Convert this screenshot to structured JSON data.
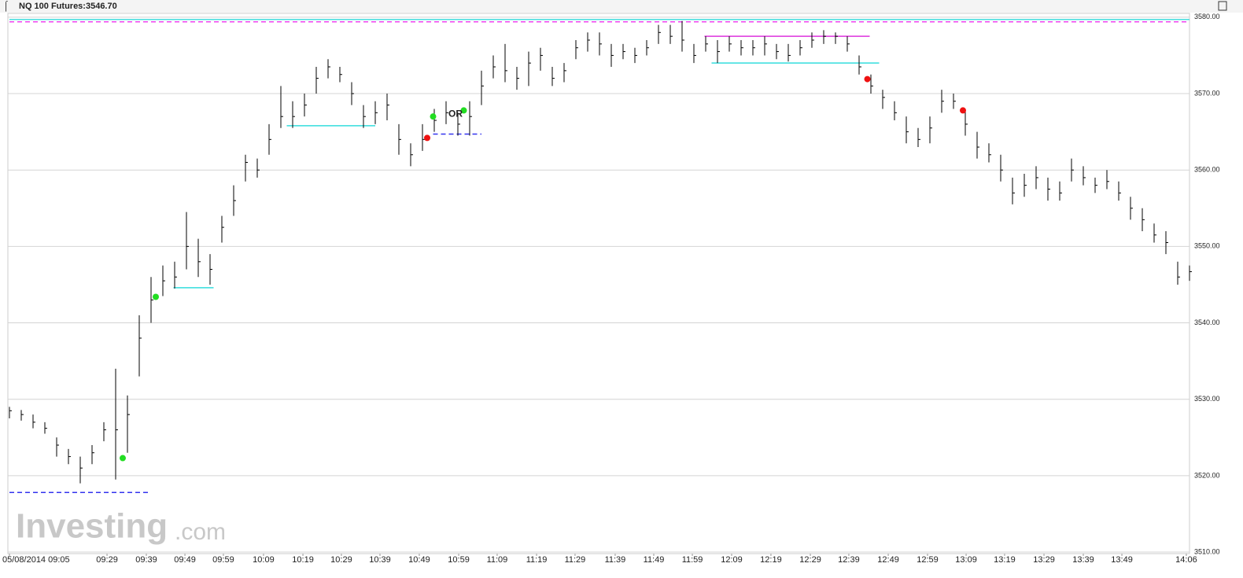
{
  "chart_data": {
    "type": "ohlc",
    "title": "NQ 100 Futures:3546.70",
    "watermark": [
      "Investing",
      ".com"
    ],
    "color": "#000000",
    "high": [
      3529,
      3528.6,
      3528,
      3527,
      3525,
      3523.5,
      3522.5,
      3524,
      3527,
      3534,
      3530.5,
      3541,
      3546,
      3547.5,
      3548,
      3554.5,
      3551,
      3549,
      3554,
      3558,
      3562,
      3561.5,
      3566,
      3571,
      3569,
      3570,
      3573.5,
      3574.5,
      3573.5,
      3571.5,
      3568.5,
      3569,
      3570,
      3566,
      3563.5,
      3566,
      3568,
      3569,
      3567.5,
      3569,
      3573,
      3575,
      3576.5,
      3573.5,
      3575.5,
      3576,
      3573.5,
      3574,
      3577,
      3578,
      3578,
      3576.5,
      3576.5,
      3576,
      3577,
      3579,
      3579,
      3579.5,
      3576.5,
      3577.5,
      3577,
      3577.5,
      3577,
      3577,
      3577.5,
      3576.5,
      3576.5,
      3577,
      3578,
      3578.3,
      3578,
      3577.5,
      3575,
      3572.5,
      3570.5,
      3569,
      3567,
      3565.5,
      3567,
      3570.5,
      3570,
      3568,
      3565,
      3563.5,
      3562,
      3559,
      3559.5,
      3560.5,
      3559,
      3558.5,
      3561.5,
      3560.5,
      3559,
      3560,
      3558.5,
      3556.5,
      3555,
      3553,
      3552,
      3548,
      3547.5
    ],
    "low": [
      3527.5,
      3527.2,
      3526.2,
      3525.5,
      3522.5,
      3521.5,
      3519,
      3521.5,
      3524.5,
      3519.5,
      3523,
      3533,
      3540,
      3543.5,
      3544.5,
      3547,
      3546,
      3545,
      3550.5,
      3554,
      3558.5,
      3559,
      3562,
      3565.5,
      3565.5,
      3567,
      3570,
      3572,
      3571.5,
      3568.5,
      3565.5,
      3566,
      3566.5,
      3562,
      3560.5,
      3562.5,
      3565,
      3566,
      3564.5,
      3564.5,
      3568.5,
      3572,
      3571.5,
      3570.5,
      3571,
      3573,
      3571,
      3571.5,
      3574.5,
      3575.5,
      3575,
      3573.5,
      3574.5,
      3574,
      3575,
      3576.5,
      3576.5,
      3575.5,
      3574,
      3575.5,
      3574,
      3575.5,
      3575,
      3575,
      3575,
      3574.5,
      3574.2,
      3575,
      3576,
      3576.5,
      3576.5,
      3575.5,
      3572.5,
      3570,
      3568,
      3566.5,
      3563.5,
      3563,
      3563.5,
      3567.5,
      3568,
      3564.5,
      3561.5,
      3561,
      3558.5,
      3555.5,
      3556.5,
      3557.5,
      3556,
      3556,
      3558.5,
      3558,
      3557,
      3557.5,
      3556,
      3553.5,
      3552,
      3550.5,
      3549,
      3545,
      3545.5
    ],
    "close": [
      3528.5,
      3528,
      3527,
      3526.2,
      3524,
      3522.5,
      3521,
      3523,
      3526,
      3526,
      3528,
      3538,
      3543,
      3545.5,
      3546,
      3550,
      3548,
      3547,
      3552.5,
      3556,
      3561,
      3560,
      3564,
      3567,
      3567,
      3568.5,
      3572,
      3573.5,
      3572.5,
      3570,
      3567,
      3567.5,
      3568.5,
      3564,
      3562,
      3564,
      3566.5,
      3567.5,
      3566,
      3567,
      3571,
      3573.5,
      3573,
      3572,
      3574,
      3575,
      3572,
      3573,
      3576,
      3577,
      3576.5,
      3575,
      3575.5,
      3575,
      3576,
      3578,
      3577.5,
      3577,
      3575,
      3576.5,
      3575.5,
      3576.5,
      3576,
      3576,
      3576.5,
      3575.5,
      3575,
      3576,
      3577,
      3577.5,
      3577.5,
      3576.5,
      3573.5,
      3571,
      3569.5,
      3567.5,
      3565,
      3564,
      3565.5,
      3569,
      3569,
      3566,
      3563,
      3562,
      3560,
      3557,
      3558,
      3559,
      3557.5,
      3557,
      3560,
      3559,
      3558,
      3558.5,
      3557,
      3555,
      3553.5,
      3551.5,
      3550.5,
      3546,
      3546.7
    ],
    "xlim": [
      0,
      100
    ],
    "ylim": [
      3509.8,
      3580.5
    ],
    "yticks": [
      {
        "value": 3510,
        "label": "3510.00"
      },
      {
        "value": 3520,
        "label": "3520.00"
      },
      {
        "value": 3530,
        "label": "3530.00"
      },
      {
        "value": 3540,
        "label": "3540.00"
      },
      {
        "value": 3550,
        "label": "3550.00"
      },
      {
        "value": 3560,
        "label": "3560.00"
      },
      {
        "value": 3570,
        "label": "3570.00"
      },
      {
        "value": 3580,
        "label": "3580.00"
      }
    ],
    "xticks": [
      {
        "value": 0,
        "label": "05/08/2014 09:05"
      },
      {
        "value": 8.27,
        "label": "09:29"
      },
      {
        "value": 11.6,
        "label": "09:39"
      },
      {
        "value": 14.87,
        "label": "09:49"
      },
      {
        "value": 18.13,
        "label": "09:59"
      },
      {
        "value": 21.53,
        "label": "10:09"
      },
      {
        "value": 24.87,
        "label": "10:19"
      },
      {
        "value": 28.13,
        "label": "10:29"
      },
      {
        "value": 31.4,
        "label": "10:39"
      },
      {
        "value": 34.73,
        "label": "10:49"
      },
      {
        "value": 38.07,
        "label": "10:59"
      },
      {
        "value": 41.33,
        "label": "11:09"
      },
      {
        "value": 44.67,
        "label": "11:19"
      },
      {
        "value": 47.93,
        "label": "11:29"
      },
      {
        "value": 51.33,
        "label": "11:39"
      },
      {
        "value": 54.6,
        "label": "11:49"
      },
      {
        "value": 57.87,
        "label": "11:59"
      },
      {
        "value": 61.2,
        "label": "12:09"
      },
      {
        "value": 64.53,
        "label": "12:19"
      },
      {
        "value": 67.87,
        "label": "12:29"
      },
      {
        "value": 71.13,
        "label": "12:39"
      },
      {
        "value": 74.47,
        "label": "12:49"
      },
      {
        "value": 77.8,
        "label": "12:59"
      },
      {
        "value": 81.07,
        "label": "13:09"
      },
      {
        "value": 84.33,
        "label": "13:19"
      },
      {
        "value": 87.67,
        "label": "13:29"
      },
      {
        "value": 91,
        "label": "13:39"
      },
      {
        "value": 94.27,
        "label": "13:49"
      },
      {
        "value": 99.73,
        "label": "14:06"
      }
    ],
    "grid": true,
    "levels": [
      {
        "value": 3579.7,
        "from": 0,
        "to": 100,
        "color": "#44dddd",
        "dashed": false
      },
      {
        "value": 3579.4,
        "from": 0,
        "to": 100,
        "color": "#ee44ee",
        "dashed": true
      },
      {
        "value": 3517.8,
        "from": 0,
        "to": 11.9,
        "color": "#3333ee",
        "dashed": true
      },
      {
        "value": 3544.6,
        "from": 13.9,
        "to": 17.3,
        "color": "#33dddd",
        "dashed": false
      },
      {
        "value": 3565.8,
        "from": 23.5,
        "to": 31,
        "color": "#33dddd",
        "dashed": false
      },
      {
        "value": 3564.7,
        "from": 35.9,
        "to": 40,
        "color": "#3333ee",
        "dashed": true
      },
      {
        "value": 3577.5,
        "from": 58.9,
        "to": 72.9,
        "color": "#dd33dd",
        "dashed": false
      },
      {
        "value": 3574,
        "from": 59.5,
        "to": 73.7,
        "color": "#33dddd",
        "dashed": false
      }
    ],
    "markers": [
      {
        "x": 9.6,
        "value": 3522.3,
        "color": "#22dd22"
      },
      {
        "x": 12.4,
        "value": 3543.4,
        "color": "#22dd22"
      },
      {
        "x": 35.4,
        "value": 3564.2,
        "color": "#ee1111"
      },
      {
        "x": 35.9,
        "value": 3567,
        "color": "#22dd22"
      },
      {
        "x": 38.5,
        "value": 3567.8,
        "color": "#22dd22"
      },
      {
        "x": 72.7,
        "value": 3571.9,
        "color": "#ee1111"
      },
      {
        "x": 80.8,
        "value": 3567.8,
        "color": "#ee1111"
      }
    ],
    "annotations": [
      {
        "text": "OR",
        "x": 37.2,
        "value": 3567.3
      }
    ]
  }
}
